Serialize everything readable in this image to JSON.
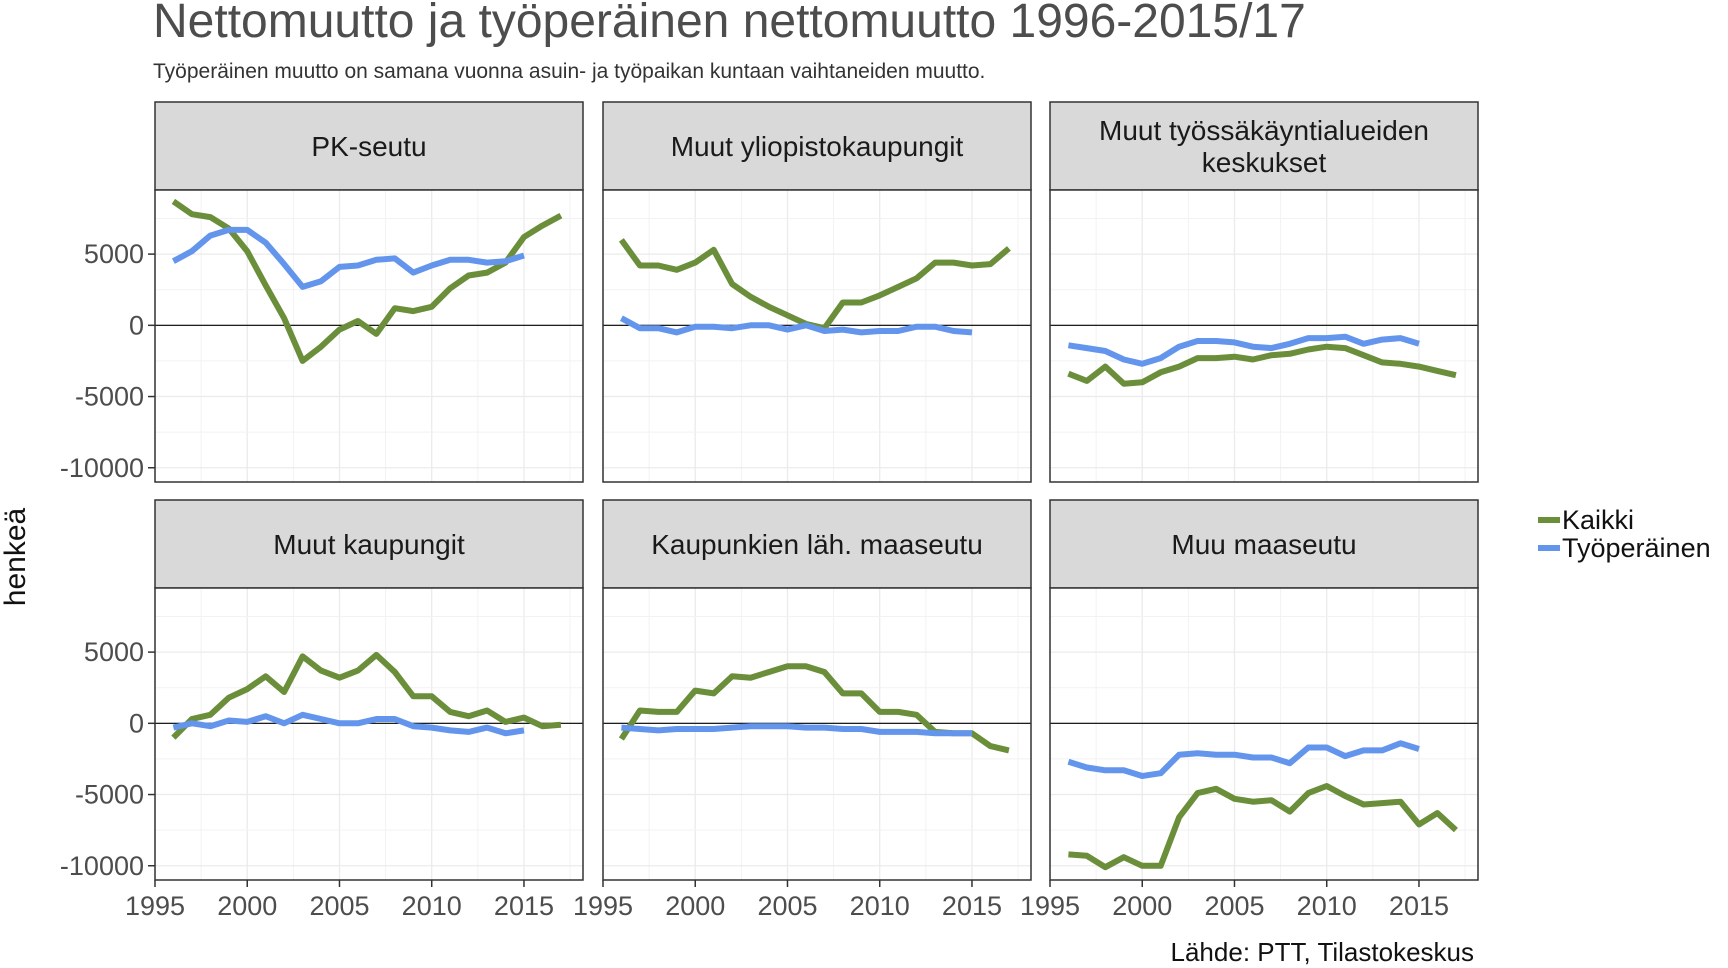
{
  "title": "Nettomuutto ja työperäinen nettomuutto 1996-2015/17",
  "subtitle": "Työperäinen muutto on samana vuonna asuin- ja työpaikan kuntaan vaihtaneiden muutto.",
  "caption": "Lähde: PTT, Tilastokeskus",
  "colors": {
    "Kaikki": "#6b8e3a",
    "Työperäinen": "#6495ed",
    "strip": "#d9d9d9",
    "panel_border": "#333333",
    "grid": "#ebebeb"
  },
  "chart_data": {
    "type": "line",
    "facet_layout": {
      "rows": 2,
      "cols": 3
    },
    "xlabel": "",
    "ylabel": "henkeä",
    "xlim": [
      1995,
      2018.2
    ],
    "ylim": [
      -11000,
      9500
    ],
    "x_ticks": [
      1995,
      2000,
      2005,
      2010,
      2015
    ],
    "y_ticks": [
      -10000,
      -5000,
      0,
      5000
    ],
    "y_tick_labels": [
      "-10000",
      "-5000",
      "0",
      "5000"
    ],
    "legend": {
      "position": "right",
      "entries": [
        "Kaikki",
        "Työperäinen"
      ]
    },
    "grid": true,
    "panels": [
      {
        "title": "PK-seutu",
        "series": [
          {
            "name": "Kaikki",
            "x": [
              1996,
              1997,
              1998,
              1999,
              2000,
              2001,
              2002,
              2003,
              2004,
              2005,
              2006,
              2007,
              2008,
              2009,
              2010,
              2011,
              2012,
              2013,
              2014,
              2015,
              2016,
              2017
            ],
            "values": [
              8700,
              7800,
              7600,
              6800,
              5200,
              2800,
              500,
              -2500,
              -1500,
              -300,
              300,
              -600,
              1200,
              1000,
              1300,
              2600,
              3500,
              3700,
              4400,
              6200,
              7000,
              7700
            ]
          },
          {
            "name": "Työperäinen",
            "x": [
              1996,
              1997,
              1998,
              1999,
              2000,
              2001,
              2002,
              2003,
              2004,
              2005,
              2006,
              2007,
              2008,
              2009,
              2010,
              2011,
              2012,
              2013,
              2014,
              2015
            ],
            "values": [
              4500,
              5200,
              6300,
              6700,
              6700,
              5800,
              4300,
              2700,
              3100,
              4100,
              4200,
              4600,
              4700,
              3700,
              4200,
              4600,
              4600,
              4400,
              4500,
              4900
            ]
          }
        ]
      },
      {
        "title": "Muut yliopistokaupungit",
        "series": [
          {
            "name": "Kaikki",
            "x": [
              1996,
              1997,
              1998,
              1999,
              2000,
              2001,
              2002,
              2003,
              2004,
              2005,
              2006,
              2007,
              2008,
              2009,
              2010,
              2011,
              2012,
              2013,
              2014,
              2015,
              2016,
              2017
            ],
            "values": [
              6000,
              4200,
              4200,
              3900,
              4400,
              5300,
              2900,
              2000,
              1300,
              700,
              100,
              -200,
              1600,
              1600,
              2100,
              2700,
              3300,
              4400,
              4400,
              4200,
              4300,
              5400
            ]
          },
          {
            "name": "Työperäinen",
            "x": [
              1996,
              1997,
              1998,
              1999,
              2000,
              2001,
              2002,
              2003,
              2004,
              2005,
              2006,
              2007,
              2008,
              2009,
              2010,
              2011,
              2012,
              2013,
              2014,
              2015
            ],
            "values": [
              500,
              -200,
              -200,
              -500,
              -100,
              -100,
              -200,
              0,
              0,
              -300,
              0,
              -400,
              -300,
              -500,
              -400,
              -400,
              -100,
              -100,
              -400,
              -500
            ]
          }
        ]
      },
      {
        "title": "Muut työssäkäyntialueiden keskukset",
        "title_lines": [
          "Muut työssäkäyntialueiden",
          "keskukset"
        ],
        "series": [
          {
            "name": "Kaikki",
            "x": [
              1996,
              1997,
              1998,
              1999,
              2000,
              2001,
              2002,
              2003,
              2004,
              2005,
              2006,
              2007,
              2008,
              2009,
              2010,
              2011,
              2012,
              2013,
              2014,
              2015,
              2016,
              2017
            ],
            "values": [
              -3400,
              -3900,
              -2900,
              -4100,
              -4000,
              -3300,
              -2900,
              -2300,
              -2300,
              -2200,
              -2400,
              -2100,
              -2000,
              -1700,
              -1500,
              -1600,
              -2100,
              -2600,
              -2700,
              -2900,
              -3200,
              -3500
            ]
          },
          {
            "name": "Työperäinen",
            "x": [
              1996,
              1997,
              1998,
              1999,
              2000,
              2001,
              2002,
              2003,
              2004,
              2005,
              2006,
              2007,
              2008,
              2009,
              2010,
              2011,
              2012,
              2013,
              2014,
              2015
            ],
            "values": [
              -1400,
              -1600,
              -1800,
              -2400,
              -2700,
              -2300,
              -1500,
              -1100,
              -1100,
              -1200,
              -1500,
              -1600,
              -1300,
              -900,
              -900,
              -800,
              -1300,
              -1000,
              -900,
              -1300
            ]
          }
        ]
      },
      {
        "title": "Muut kaupungit",
        "series": [
          {
            "name": "Kaikki",
            "x": [
              1996,
              1997,
              1998,
              1999,
              2000,
              2001,
              2002,
              2003,
              2004,
              2005,
              2006,
              2007,
              2008,
              2009,
              2010,
              2011,
              2012,
              2013,
              2014,
              2015,
              2016,
              2017
            ],
            "values": [
              -1000,
              300,
              600,
              1800,
              2400,
              3300,
              2200,
              4700,
              3700,
              3200,
              3700,
              4800,
              3600,
              1900,
              1900,
              800,
              500,
              900,
              100,
              400,
              -200,
              -100
            ]
          },
          {
            "name": "Työperäinen",
            "x": [
              1996,
              1997,
              1998,
              1999,
              2000,
              2001,
              2002,
              2003,
              2004,
              2005,
              2006,
              2007,
              2008,
              2009,
              2010,
              2011,
              2012,
              2013,
              2014,
              2015
            ],
            "values": [
              -300,
              0,
              -200,
              200,
              100,
              500,
              0,
              600,
              300,
              0,
              0,
              300,
              300,
              -200,
              -300,
              -500,
              -600,
              -300,
              -700,
              -500
            ]
          }
        ]
      },
      {
        "title": "Kaupunkien läh. maaseutu",
        "series": [
          {
            "name": "Kaikki",
            "x": [
              1996,
              1997,
              1998,
              1999,
              2000,
              2001,
              2002,
              2003,
              2004,
              2005,
              2006,
              2007,
              2008,
              2009,
              2010,
              2011,
              2012,
              2013,
              2014,
              2015,
              2016,
              2017
            ],
            "values": [
              -1100,
              900,
              800,
              800,
              2300,
              2100,
              3300,
              3200,
              3600,
              4000,
              4000,
              3600,
              2100,
              2100,
              800,
              800,
              600,
              -600,
              -700,
              -700,
              -1600,
              -1900
            ]
          },
          {
            "name": "Työperäinen",
            "x": [
              1996,
              1997,
              1998,
              1999,
              2000,
              2001,
              2002,
              2003,
              2004,
              2005,
              2006,
              2007,
              2008,
              2009,
              2010,
              2011,
              2012,
              2013,
              2014,
              2015
            ],
            "values": [
              -300,
              -400,
              -500,
              -400,
              -400,
              -400,
              -300,
              -200,
              -200,
              -200,
              -300,
              -300,
              -400,
              -400,
              -600,
              -600,
              -600,
              -700,
              -700,
              -700
            ]
          }
        ]
      },
      {
        "title": "Muu maaseutu",
        "series": [
          {
            "name": "Kaikki",
            "x": [
              1996,
              1997,
              1998,
              1999,
              2000,
              2001,
              2002,
              2003,
              2004,
              2005,
              2006,
              2007,
              2008,
              2009,
              2010,
              2011,
              2012,
              2013,
              2014,
              2015,
              2016,
              2017
            ],
            "values": [
              -9200,
              -9300,
              -10100,
              -9400,
              -10000,
              -10000,
              -6600,
              -4900,
              -4600,
              -5300,
              -5500,
              -5400,
              -6200,
              -4900,
              -4400,
              -5100,
              -5700,
              -5600,
              -5500,
              -7100,
              -6300,
              -7500
            ]
          },
          {
            "name": "Työperäinen",
            "x": [
              1996,
              1997,
              1998,
              1999,
              2000,
              2001,
              2002,
              2003,
              2004,
              2005,
              2006,
              2007,
              2008,
              2009,
              2010,
              2011,
              2012,
              2013,
              2014,
              2015
            ],
            "values": [
              -2700,
              -3100,
              -3300,
              -3300,
              -3700,
              -3500,
              -2200,
              -2100,
              -2200,
              -2200,
              -2400,
              -2400,
              -2800,
              -1700,
              -1700,
              -2300,
              -1900,
              -1900,
              -1400,
              -1800
            ]
          }
        ]
      }
    ]
  }
}
